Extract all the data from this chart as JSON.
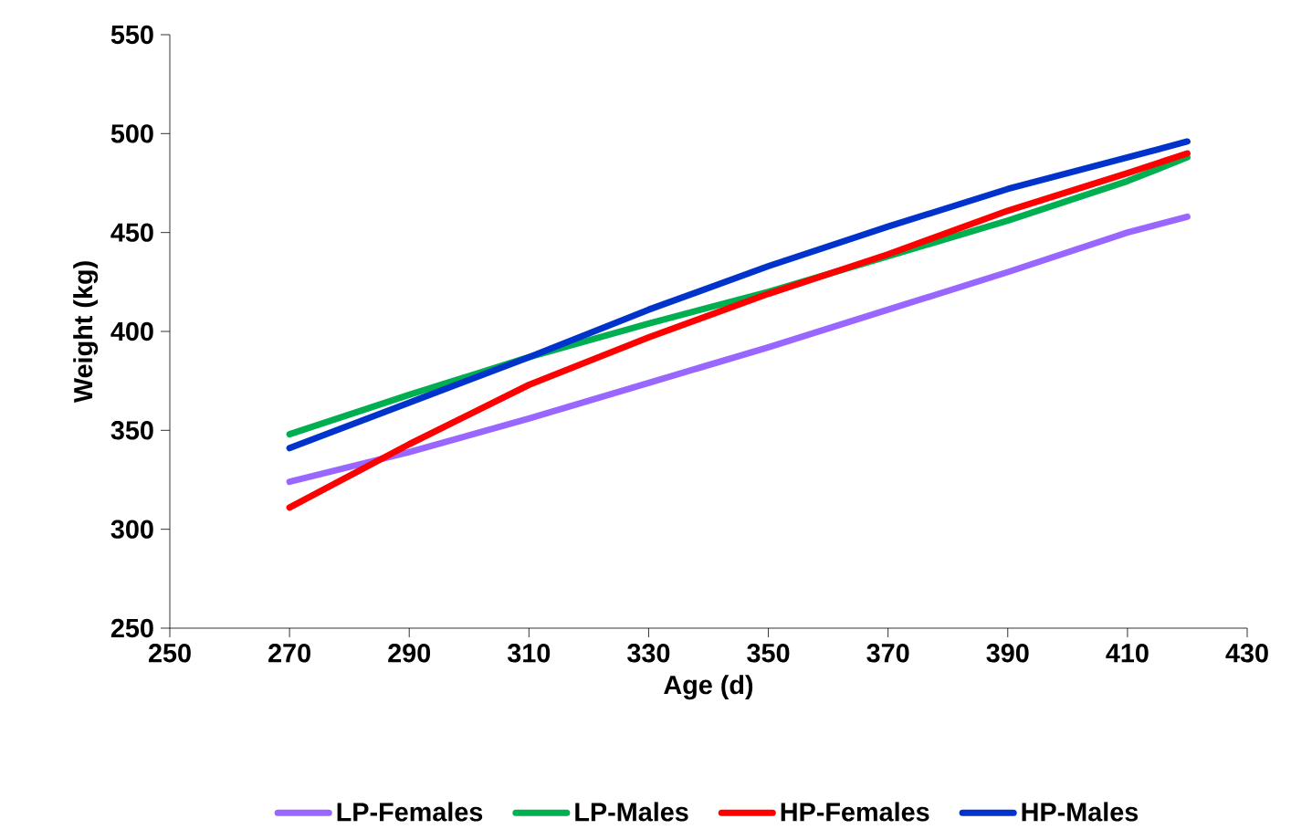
{
  "chart_data": {
    "type": "line",
    "xlabel": "Age (d)",
    "ylabel": "Weight (kg)",
    "x": [
      270,
      290,
      310,
      330,
      350,
      370,
      390,
      410,
      420
    ],
    "series": [
      {
        "name": "LP-Females",
        "color": "#9966ff",
        "values": [
          324,
          339,
          356,
          374,
          392,
          411,
          430,
          450,
          458
        ]
      },
      {
        "name": "LP-Males",
        "color": "#00b050",
        "values": [
          348,
          368,
          387,
          404,
          420,
          438,
          456,
          476,
          488
        ]
      },
      {
        "name": "HP-Females",
        "color": "#ff0000",
        "values": [
          311,
          343,
          373,
          397,
          419,
          439,
          461,
          480,
          490
        ]
      },
      {
        "name": "HP-Males",
        "color": "#0033cc",
        "values": [
          341,
          364,
          387,
          411,
          433,
          453,
          472,
          488,
          496
        ]
      }
    ],
    "xlim": [
      250,
      430
    ],
    "xticks": [
      250,
      270,
      290,
      310,
      330,
      350,
      370,
      390,
      410,
      430
    ],
    "ylim": [
      250,
      550
    ],
    "yticks": [
      250,
      300,
      350,
      400,
      450,
      500,
      550
    ],
    "grid": false,
    "legend": "bottom",
    "line_style": "solid"
  }
}
